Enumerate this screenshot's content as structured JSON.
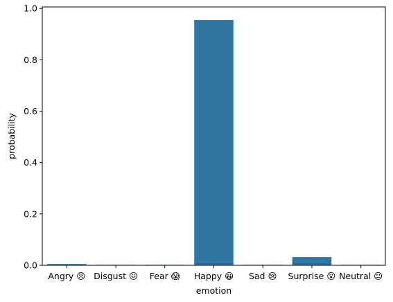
{
  "chart_data": {
    "type": "bar",
    "title": "",
    "xlabel": "emotion",
    "ylabel": "probability",
    "categories": [
      "Angry 😠",
      "Disgust 😖",
      "Fear 😱",
      "Happy 😀",
      "Sad 😢",
      "Surprise 😮",
      "Neutral 😐"
    ],
    "values": [
      0.005,
      0.002,
      0.002,
      0.955,
      0.002,
      0.032,
      0.002
    ],
    "ylim": [
      0,
      1.0
    ],
    "yticks": [
      0.0,
      0.2,
      0.4,
      0.6,
      0.8,
      1.0
    ],
    "ytick_labels": [
      "0.0",
      "0.2",
      "0.4",
      "0.6",
      "0.8",
      "1.0"
    ],
    "grid": false,
    "bar_color": "#3274a1"
  }
}
